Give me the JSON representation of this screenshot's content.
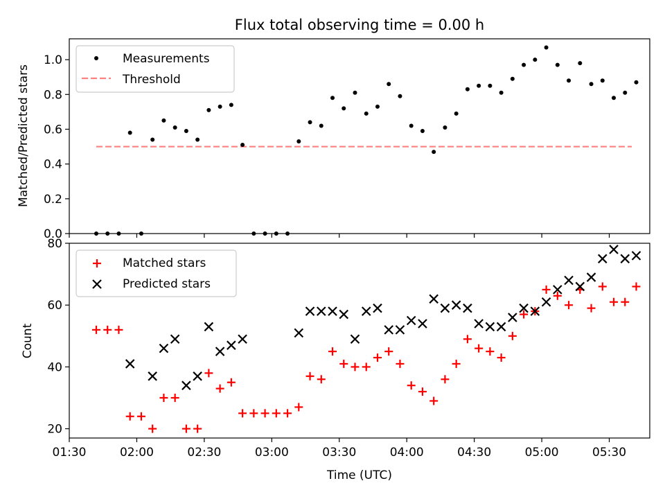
{
  "title": "Flux total observing time = 0.00 h",
  "colors": {
    "measurement": "#000000",
    "threshold": "#ff7f7f",
    "matched": "#ff0000",
    "predicted": "#000000"
  },
  "chart_data": [
    {
      "type": "scatter",
      "title": "Flux total observing time = 0.00 h",
      "xlabel": "",
      "ylabel": "Matched/Predicted stars",
      "ylim": [
        0,
        1.12
      ],
      "yticks": [
        "0.0",
        "0.2",
        "0.4",
        "0.6",
        "0.8",
        "1.0"
      ],
      "legend": {
        "placement": "top-left",
        "entries": [
          "Measurements",
          "Threshold"
        ]
      },
      "threshold": 0.5,
      "threshold_x": [
        "01:42",
        "05:40"
      ],
      "series": [
        {
          "name": "Measurements",
          "x": [
            "01:42",
            "01:47",
            "01:52",
            "01:57",
            "02:02",
            "02:07",
            "02:12",
            "02:17",
            "02:22",
            "02:27",
            "02:32",
            "02:37",
            "02:42",
            "02:47",
            "02:52",
            "02:57",
            "03:02",
            "03:07",
            "03:12",
            "03:17",
            "03:22",
            "03:27",
            "03:32",
            "03:37",
            "03:42",
            "03:47",
            "03:52",
            "03:57",
            "04:02",
            "04:07",
            "04:12",
            "04:17",
            "04:22",
            "04:27",
            "04:32",
            "04:37",
            "04:42",
            "04:47",
            "04:52",
            "04:57",
            "05:02",
            "05:07",
            "05:12",
            "05:17",
            "05:22",
            "05:27",
            "05:32",
            "05:37",
            "05:42"
          ],
          "values": [
            0.0,
            0.0,
            0.0,
            0.58,
            0.0,
            0.54,
            0.65,
            0.61,
            0.59,
            0.54,
            0.71,
            0.73,
            0.74,
            0.51,
            0.0,
            0.0,
            0.0,
            0.0,
            0.53,
            0.64,
            0.62,
            0.78,
            0.72,
            0.81,
            0.69,
            0.73,
            0.86,
            0.79,
            0.62,
            0.59,
            0.47,
            0.61,
            0.69,
            0.83,
            0.85,
            0.85,
            0.81,
            0.89,
            0.97,
            1.0,
            1.07,
            0.97,
            0.88,
            0.98,
            0.86,
            0.88,
            0.78,
            0.81,
            0.87
          ]
        }
      ]
    },
    {
      "type": "scatter",
      "xlabel": "Time (UTC)",
      "ylabel": "Count",
      "ylim": [
        17,
        80
      ],
      "yticks": [
        "20",
        "40",
        "60",
        "80"
      ],
      "xticks": [
        "01:30",
        "02:00",
        "02:30",
        "03:00",
        "03:30",
        "04:00",
        "04:30",
        "05:00",
        "05:30"
      ],
      "legend": {
        "placement": "top-left",
        "entries": [
          "Matched stars",
          "Predicted stars"
        ]
      },
      "series": [
        {
          "name": "Matched stars",
          "x": [
            "01:42",
            "01:47",
            "01:52",
            "01:57",
            "02:02",
            "02:07",
            "02:12",
            "02:17",
            "02:22",
            "02:27",
            "02:32",
            "02:37",
            "02:42",
            "02:47",
            "02:52",
            "02:57",
            "03:02",
            "03:07",
            "03:12",
            "03:17",
            "03:22",
            "03:27",
            "03:32",
            "03:37",
            "03:42",
            "03:47",
            "03:52",
            "03:57",
            "04:02",
            "04:07",
            "04:12",
            "04:17",
            "04:22",
            "04:27",
            "04:32",
            "04:37",
            "04:42",
            "04:47",
            "04:52",
            "04:57",
            "05:02",
            "05:07",
            "05:12",
            "05:17",
            "05:22",
            "05:27",
            "05:32",
            "05:37",
            "05:42"
          ],
          "values": [
            52,
            52,
            52,
            24,
            24,
            20,
            30,
            30,
            20,
            20,
            38,
            33,
            35,
            25,
            25,
            25,
            25,
            25,
            27,
            37,
            36,
            45,
            41,
            40,
            40,
            43,
            45,
            41,
            34,
            32,
            29,
            36,
            41,
            49,
            46,
            45,
            43,
            50,
            57,
            58,
            65,
            63,
            60,
            65,
            59,
            66,
            61,
            61,
            66
          ]
        },
        {
          "name": "Predicted stars",
          "x": [
            "01:57",
            "02:07",
            "02:12",
            "02:17",
            "02:22",
            "02:27",
            "02:32",
            "02:37",
            "02:42",
            "02:47",
            "03:12",
            "03:17",
            "03:22",
            "03:27",
            "03:32",
            "03:37",
            "03:42",
            "03:47",
            "03:52",
            "03:57",
            "04:02",
            "04:07",
            "04:12",
            "04:17",
            "04:22",
            "04:27",
            "04:32",
            "04:37",
            "04:42",
            "04:47",
            "04:52",
            "04:57",
            "05:02",
            "05:07",
            "05:12",
            "05:17",
            "05:22",
            "05:27",
            "05:32",
            "05:37",
            "05:42"
          ],
          "values": [
            41,
            37,
            46,
            49,
            34,
            37,
            53,
            45,
            47,
            49,
            51,
            58,
            58,
            58,
            57,
            49,
            58,
            59,
            52,
            52,
            55,
            54,
            62,
            59,
            60,
            59,
            54,
            53,
            53,
            56,
            59,
            58,
            61,
            65,
            68,
            66,
            69,
            75,
            78,
            75,
            76
          ]
        }
      ]
    }
  ]
}
